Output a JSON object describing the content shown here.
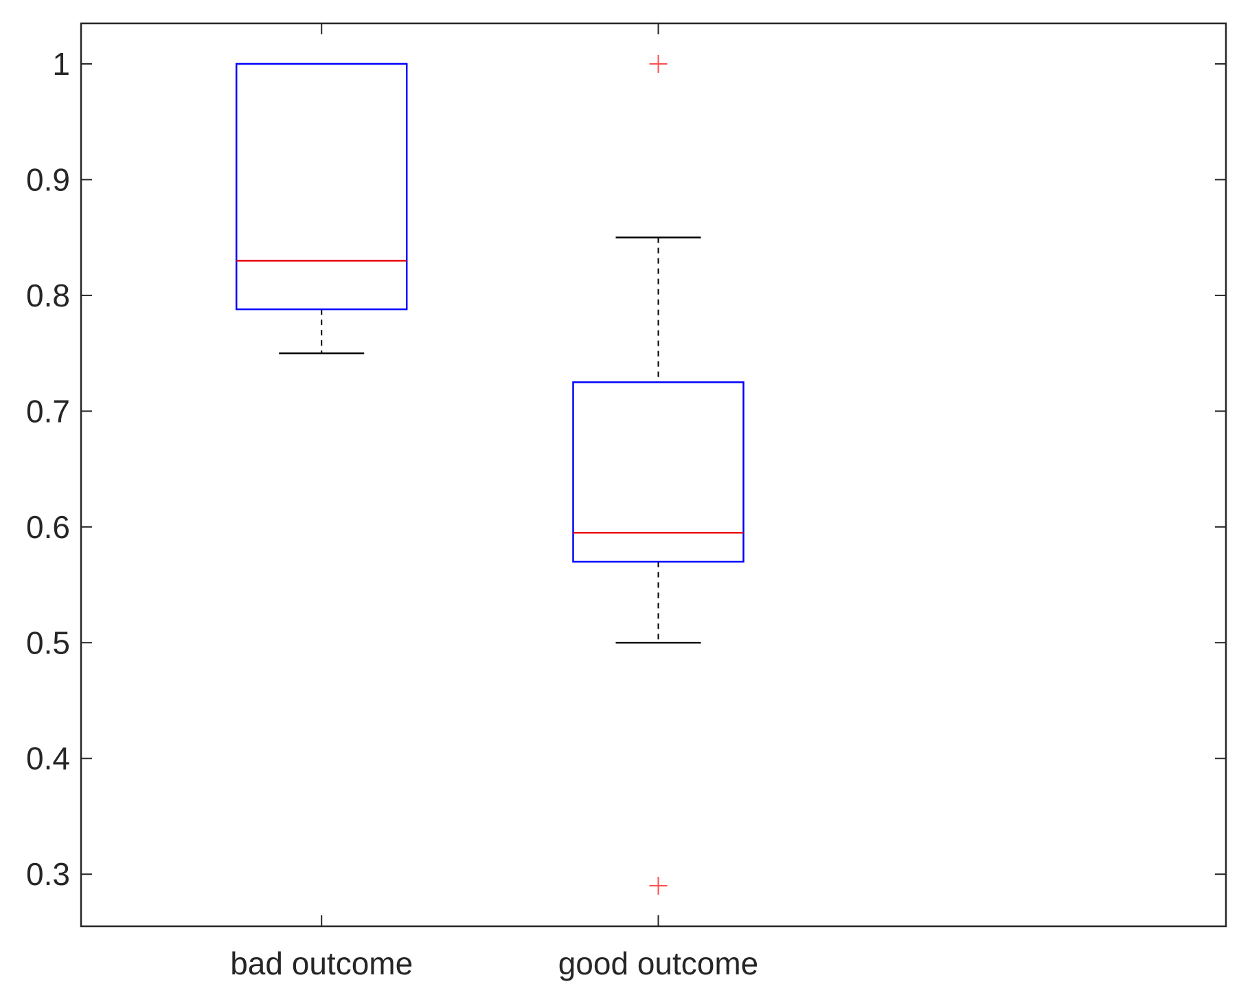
{
  "chart_data": {
    "type": "boxplot",
    "title": "",
    "xlabel": "",
    "ylabel": "",
    "ylim": [
      0.255,
      1.035
    ],
    "yticks": [
      0.3,
      0.4,
      0.5,
      0.6,
      0.7,
      0.8,
      0.9,
      1
    ],
    "ytick_labels": [
      "0.3",
      "0.4",
      "0.5",
      "0.6",
      "0.7",
      "0.8",
      "0.9",
      "1"
    ],
    "grid": false,
    "categories": [
      "bad outcome",
      "good outcome"
    ],
    "boxes": [
      {
        "category": "bad outcome",
        "whisker_low": 0.75,
        "q1": 0.788,
        "median": 0.83,
        "q3": 1.0,
        "whisker_high": 1.0,
        "outliers": []
      },
      {
        "category": "good outcome",
        "whisker_low": 0.5,
        "q1": 0.57,
        "median": 0.595,
        "q3": 0.725,
        "whisker_high": 0.85,
        "outliers": [
          1.0,
          0.29
        ]
      }
    ],
    "colors": {
      "box": "#0000ff",
      "median": "#e8000b",
      "whisker": "#000000",
      "outlier": "#ff4d4d",
      "axes": "#262626"
    }
  }
}
